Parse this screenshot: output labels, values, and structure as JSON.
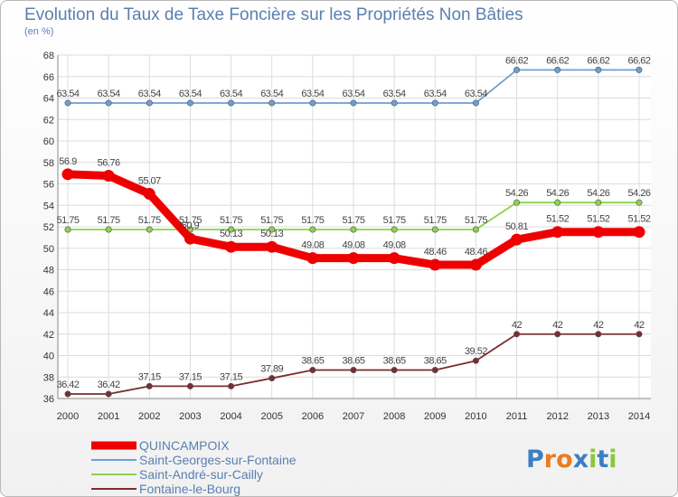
{
  "chart_data": {
    "type": "line",
    "title": "Evolution du Taux de Taxe Foncière sur les Propriétés Non Bâties",
    "ylabel": "(en %)",
    "xlabel": "",
    "ylim": [
      36,
      68
    ],
    "yticks": [
      36,
      38,
      40,
      42,
      44,
      46,
      48,
      50,
      52,
      54,
      56,
      58,
      60,
      62,
      64,
      66,
      68
    ],
    "categories": [
      "2000",
      "2001",
      "2002",
      "2003",
      "2004",
      "2005",
      "2006",
      "2007",
      "2008",
      "2009",
      "2010",
      "2011",
      "2012",
      "2013",
      "2014"
    ],
    "grid": true,
    "legend_position": "bottom-left",
    "series": [
      {
        "name": "QUINCAMPOIX",
        "color": "#ee0000",
        "emphasis": true,
        "values": [
          56.9,
          56.76,
          55.07,
          50.9,
          50.13,
          50.13,
          49.08,
          49.08,
          49.08,
          48.46,
          48.46,
          50.81,
          51.52,
          51.52,
          51.52
        ],
        "labels": [
          "56.9",
          "56.76",
          "55.07",
          "50.9",
          "50.13",
          "50.13",
          "49.08",
          "49.08",
          "49.08",
          "48.46",
          "48.46",
          "50.81",
          "51.52",
          "51.52",
          "51.52"
        ]
      },
      {
        "name": "Saint-Georges-sur-Fontaine",
        "color": "#6d9fd3",
        "values": [
          63.54,
          63.54,
          63.54,
          63.54,
          63.54,
          63.54,
          63.54,
          63.54,
          63.54,
          63.54,
          63.54,
          66.62,
          66.62,
          66.62,
          66.62
        ],
        "labels": [
          "63.54",
          "63.54",
          "63.54",
          "63.54",
          "63.54",
          "63.54",
          "63.54",
          "63.54",
          "63.54",
          "63.54",
          "63.54",
          "66.62",
          "66.62",
          "66.62",
          "66.62"
        ]
      },
      {
        "name": "Saint-André-sur-Cailly",
        "color": "#8cd24e",
        "values": [
          51.75,
          51.75,
          51.75,
          51.75,
          51.75,
          51.75,
          51.75,
          51.75,
          51.75,
          51.75,
          51.75,
          54.26,
          54.26,
          54.26,
          54.26
        ],
        "labels": [
          "51.75",
          "51.75",
          "51.75",
          "51.75",
          "51.75",
          "51.75",
          "51.75",
          "51.75",
          "51.75",
          "51.75",
          "51.75",
          "54.26",
          "54.26",
          "54.26",
          "54.26"
        ]
      },
      {
        "name": "Fontaine-le-Bourg",
        "color": "#7a2e2e",
        "values": [
          36.42,
          36.42,
          37.15,
          37.15,
          37.15,
          37.89,
          38.65,
          38.65,
          38.65,
          38.65,
          39.52,
          42,
          42,
          42,
          42
        ],
        "labels": [
          "36.42",
          "36.42",
          "37.15",
          "37.15",
          "37.15",
          "37.89",
          "38.65",
          "38.65",
          "38.65",
          "38.65",
          "39.52",
          "42",
          "42",
          "42",
          "42"
        ]
      }
    ]
  },
  "logo": {
    "text": "Proxiti",
    "letters": [
      "P",
      "r",
      "o",
      "x",
      "i",
      "t",
      "i"
    ],
    "colors": [
      "#3b7fc4",
      "#e87d1e",
      "#e87d1e",
      "#3b7fc4",
      "#8cc63f",
      "#3b7fc4",
      "#8cc63f"
    ]
  }
}
